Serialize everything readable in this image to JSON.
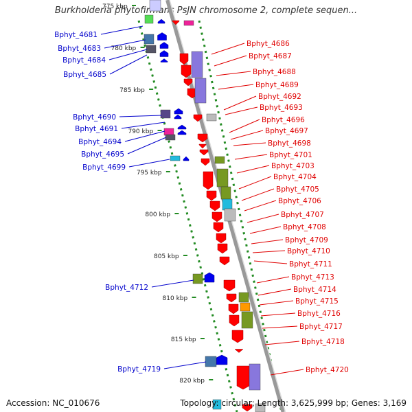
{
  "title": "Burkholderia phytofirmans PsJN chromosome 2, complete sequen...",
  "accession": "Accession: NC_010676",
  "topology": "Topology: circular; Length: 3,625,999 bp; Genes: 3,169",
  "colors": {
    "backbone": "#999999",
    "tick": "#228b22",
    "left_label": "#0000cc",
    "right_label": "#e00000",
    "gene_red": "#ff0000",
    "gene_blue": "#0000ee",
    "box_purple": "#8877dd",
    "box_green": "#779922",
    "box_steel": "#4477aa",
    "box_dark": "#555566",
    "box_cyan": "#22bbdd",
    "box_magenta": "#ee2299",
    "box_orange": "#ff9900",
    "box_grey": "#bbbbbb"
  },
  "scale_labels": [
    "775 kbp",
    "780 kbp",
    "785 kbp",
    "790 kbp",
    "795 kbp",
    "800 kbp",
    "805 kbp",
    "810 kbp",
    "815 kbp",
    "820 kbp"
  ],
  "left_genes": [
    "Bphyt_4681",
    "Bphyt_4683",
    "Bphyt_4684",
    "Bphyt_4685",
    "Bphyt_4690",
    "Bphyt_4691",
    "Bphyt_4694",
    "Bphyt_4695",
    "Bphyt_4699",
    "Bphyt_4712",
    "Bphyt_4719"
  ],
  "right_genes": [
    "Bphyt_4686",
    "Bphyt_4687",
    "Bphyt_4688",
    "Bphyt_4689",
    "Bphyt_4692",
    "Bphyt_4693",
    "Bphyt_4696",
    "Bphyt_4697",
    "Bphyt_4698",
    "Bphyt_4701",
    "Bphyt_4703",
    "Bphyt_4704",
    "Bphyt_4705",
    "Bphyt_4706",
    "Bphyt_4707",
    "Bphyt_4708",
    "Bphyt_4709",
    "Bphyt_4710",
    "Bphyt_4711",
    "Bphyt_4713",
    "Bphyt_4714",
    "Bphyt_4715",
    "Bphyt_4716",
    "Bphyt_4717",
    "Bphyt_4718",
    "Bphyt_4720"
  ]
}
